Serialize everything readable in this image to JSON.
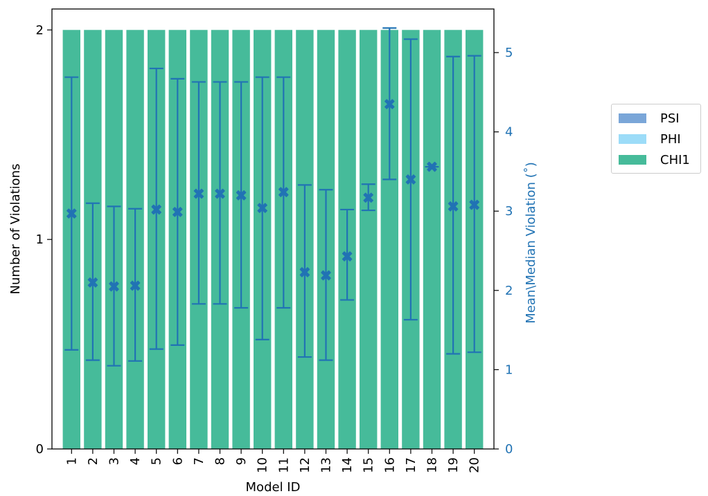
{
  "chart_data": {
    "type": "bar",
    "xlabel": "Model ID",
    "ylabel": "Number of Violations",
    "y2label": "Mean\\Median Violation (˚)",
    "categories": [
      "1",
      "2",
      "3",
      "4",
      "5",
      "6",
      "7",
      "8",
      "9",
      "10",
      "11",
      "12",
      "13",
      "14",
      "15",
      "16",
      "17",
      "18",
      "19",
      "20"
    ],
    "ylim": [
      0,
      2.1
    ],
    "yticks": [
      "0",
      "1",
      "2"
    ],
    "y2lim": [
      0,
      5.55
    ],
    "y2ticks": [
      "0",
      "1",
      "2",
      "3",
      "4",
      "5"
    ],
    "bar_series": [
      {
        "name": "PSI",
        "color": "#7aa6d8",
        "values": [
          0,
          0,
          0,
          0,
          0,
          0,
          0,
          0,
          0,
          0,
          0,
          0,
          0,
          0,
          0,
          0,
          0,
          0,
          0,
          0
        ]
      },
      {
        "name": "PHI",
        "color": "#9cdcf8",
        "values": [
          0,
          0,
          0,
          0,
          0,
          0,
          0,
          0,
          0,
          0,
          0,
          0,
          0,
          0,
          0,
          0,
          0,
          0,
          0,
          0
        ]
      },
      {
        "name": "CHI1",
        "color": "#46bb9a",
        "values": [
          2,
          2,
          2,
          2,
          2,
          2,
          2,
          2,
          2,
          2,
          2,
          2,
          2,
          2,
          2,
          2,
          2,
          2,
          2,
          2
        ]
      }
    ],
    "error_series": {
      "axis": "right",
      "color": "#2173b4",
      "marker": "X",
      "values": [
        2.97,
        2.1,
        2.05,
        2.06,
        3.02,
        2.99,
        3.22,
        3.22,
        3.2,
        3.04,
        3.24,
        2.23,
        2.19,
        2.43,
        3.17,
        4.35,
        3.4,
        3.56,
        3.06,
        3.08
      ],
      "lower": [
        1.25,
        1.12,
        1.05,
        1.11,
        1.26,
        1.31,
        1.83,
        1.83,
        1.78,
        1.38,
        1.78,
        1.16,
        1.12,
        1.88,
        3.01,
        3.4,
        1.63,
        3.56,
        1.2,
        1.22
      ],
      "upper": [
        4.69,
        3.1,
        3.06,
        3.03,
        4.8,
        4.67,
        4.63,
        4.63,
        4.63,
        4.69,
        4.69,
        3.33,
        3.27,
        3.02,
        3.34,
        5.31,
        5.17,
        3.56,
        4.95,
        4.96
      ]
    },
    "legend": {
      "position": "right",
      "entries": [
        "PSI",
        "PHI",
        "CHI1"
      ]
    },
    "grid": false
  }
}
